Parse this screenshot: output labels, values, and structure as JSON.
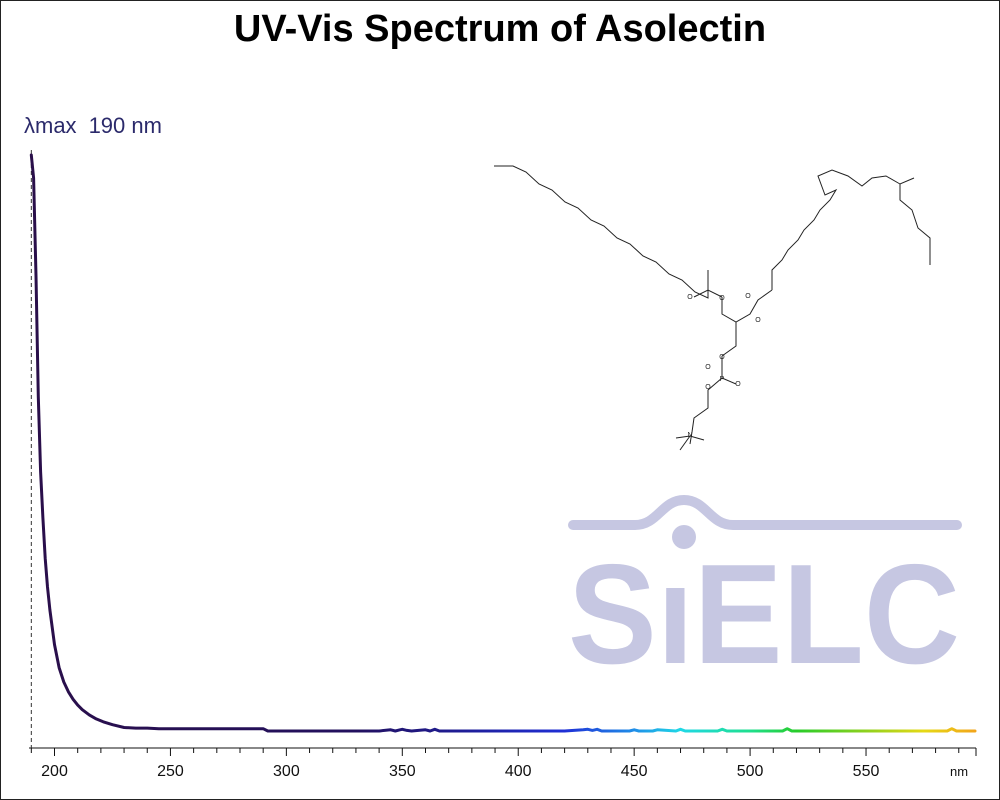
{
  "chart_data": {
    "type": "line",
    "title": "UV-Vis Spectrum of Asolectin",
    "annotation": {
      "label": "λmax",
      "value": "190 nm",
      "x": 190
    },
    "xlabel": "nm",
    "ylabel": "",
    "xlim": [
      189,
      597
    ],
    "ylim": [
      0,
      1
    ],
    "x_ticks": [
      200,
      250,
      300,
      350,
      400,
      450,
      500,
      550
    ],
    "x_tick_labels": [
      "200",
      "250",
      "300",
      "350",
      "400",
      "450",
      "500",
      "550"
    ],
    "grid": false,
    "series": [
      {
        "x": [
          190,
          191,
          192,
          193,
          194,
          195,
          196,
          197,
          198,
          200,
          202,
          204,
          206,
          208,
          210,
          212,
          215,
          218,
          221,
          225,
          230,
          235,
          240,
          245,
          250,
          260,
          270,
          280,
          290,
          292,
          295,
          300,
          320,
          340,
          345,
          347,
          349,
          350,
          352,
          354,
          360,
          362,
          364,
          366,
          368,
          380,
          400,
          420,
          428,
          430,
          432,
          434,
          436,
          440,
          448,
          450,
          452,
          458,
          460,
          468,
          470,
          472,
          486,
          488,
          490,
          500,
          514,
          516,
          518,
          540,
          560,
          580,
          585,
          587,
          589,
          592,
          597
        ],
        "values": [
          1.0,
          0.96,
          0.79,
          0.58,
          0.45,
          0.37,
          0.3,
          0.25,
          0.21,
          0.15,
          0.11,
          0.085,
          0.068,
          0.055,
          0.045,
          0.037,
          0.028,
          0.021,
          0.016,
          0.011,
          0.006,
          0.005,
          0.005,
          0.004,
          0.004,
          0.004,
          0.004,
          0.004,
          0.004,
          0.0,
          0.0,
          0.0,
          0.0,
          0.0,
          0.002,
          0.0,
          0.002,
          0.003,
          0.001,
          0.0,
          0.002,
          0.0,
          0.003,
          0.0,
          0.0,
          0.0,
          0.0,
          0.0,
          0.002,
          0.003,
          0.001,
          0.003,
          0.0,
          0.0,
          0.0,
          0.002,
          0.0,
          0.0,
          0.002,
          0.0,
          0.003,
          0.0,
          0.0,
          0.003,
          0.0,
          0.0,
          0.0,
          0.004,
          0.0,
          0.0,
          0.0,
          0.0,
          0.0,
          0.004,
          0.0,
          0.0,
          0.0
        ]
      }
    ],
    "line_gradient": [
      {
        "x": 190,
        "color": "#2a0f4a"
      },
      {
        "x": 330,
        "color": "#22105e"
      },
      {
        "x": 380,
        "color": "#1e1e9c"
      },
      {
        "x": 420,
        "color": "#1f2fd6"
      },
      {
        "x": 450,
        "color": "#1f8ee8"
      },
      {
        "x": 470,
        "color": "#1fd8e6"
      },
      {
        "x": 500,
        "color": "#1fdf8e"
      },
      {
        "x": 520,
        "color": "#27cc2a"
      },
      {
        "x": 550,
        "color": "#8fd11e"
      },
      {
        "x": 575,
        "color": "#e6d915"
      },
      {
        "x": 597,
        "color": "#f2a51a"
      }
    ]
  },
  "watermark": {
    "text": "SIELC",
    "letters": [
      "S",
      "I",
      "E",
      "L",
      "C"
    ],
    "color": "#c6c7e2"
  },
  "structure": {
    "atom_labels": [
      "O",
      "O",
      "O",
      "O",
      "O",
      "P",
      "O",
      "O",
      "O",
      "N"
    ]
  }
}
